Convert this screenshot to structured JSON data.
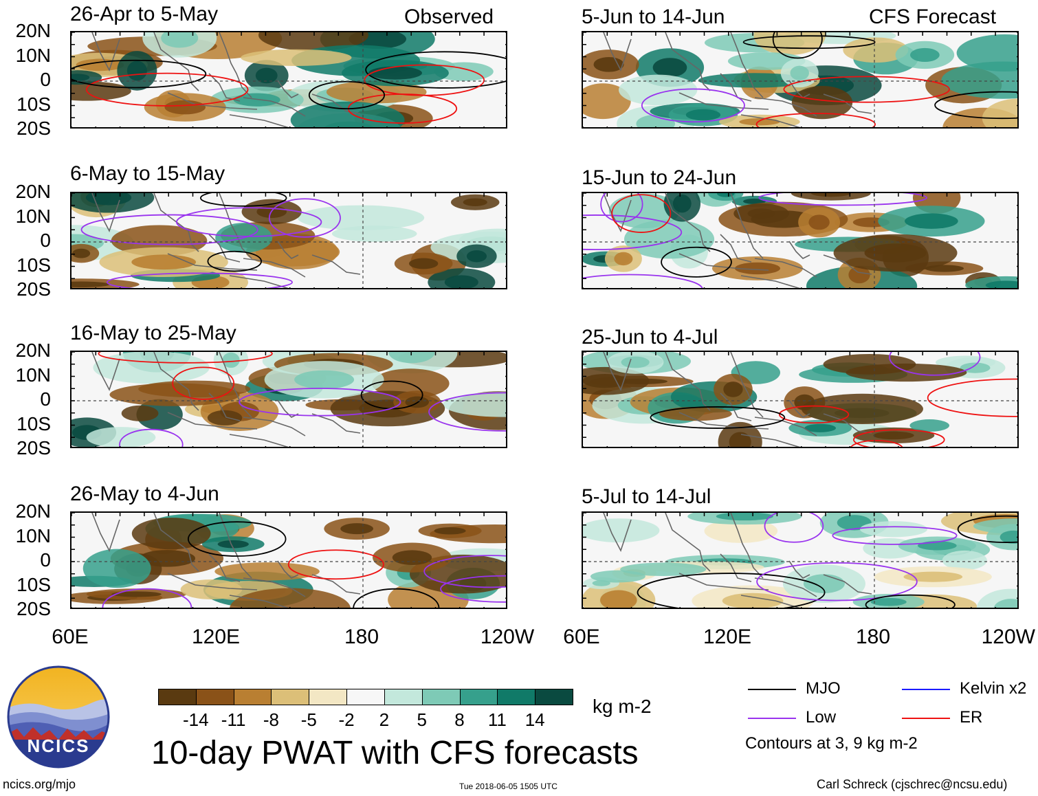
{
  "chart_data": {
    "type": "heatmap",
    "title": "10-day PWAT with CFS forecasts",
    "units": "kg m-2",
    "x_ticks": [
      "60E",
      "120E",
      "180",
      "120W"
    ],
    "y_ticks": [
      "20N",
      "10N",
      "0",
      "10S",
      "20S"
    ],
    "columns": [
      {
        "label": "Observed",
        "panels": [
          {
            "period": "26-Apr to 5-May"
          },
          {
            "period": "6-May to 15-May"
          },
          {
            "period": "16-May to 25-May"
          },
          {
            "period": "26-May to 4-Jun"
          }
        ]
      },
      {
        "label": "CFS Forecast",
        "panels": [
          {
            "period": "5-Jun to 14-Jun"
          },
          {
            "period": "15-Jun to 24-Jun"
          },
          {
            "period": "25-Jun to 4-Jul"
          },
          {
            "period": "5-Jul to 14-Jul"
          }
        ]
      }
    ],
    "colorbar": {
      "ticks": [
        "-14",
        "-11",
        "-8",
        "-5",
        "-2",
        "2",
        "5",
        "8",
        "11",
        "14"
      ],
      "colors": [
        "#5a3a10",
        "#8a5218",
        "#b97f32",
        "#dcbf78",
        "#f3e7c4",
        "#f7f7f7",
        "#c3e8dc",
        "#7ecab6",
        "#36a08c",
        "#107a68",
        "#0a4a40"
      ]
    },
    "legend": [
      {
        "name": "MJO",
        "color": "#000000"
      },
      {
        "name": "Kelvin x2",
        "color": "#1a1aff"
      },
      {
        "name": "Low",
        "color": "#9933ee"
      },
      {
        "name": "ER",
        "color": "#ee1111"
      }
    ],
    "contour_note": "Contours at 3, 9 kg m-2"
  },
  "branding": {
    "logo_text": "NCICS",
    "site": "ncics.org/mjo",
    "timestamp": "Tue 2018-06-05 1505 UTC",
    "author": "Carl Schreck (cjschrec@ncsu.edu)"
  }
}
